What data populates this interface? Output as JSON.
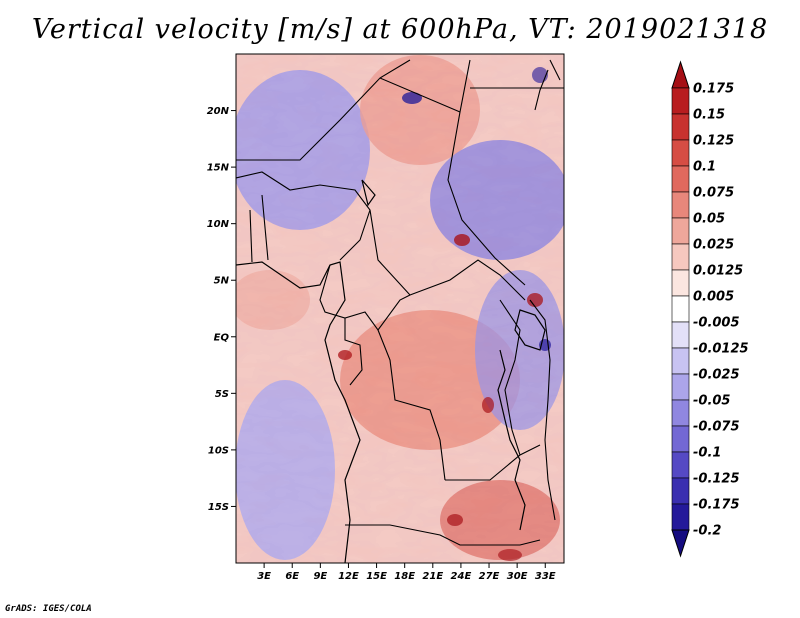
{
  "title": "Vertical velocity [m/s] at 600hPa, VT: 2019021318",
  "footer": "GrADS: IGES/COLA",
  "chart_data": {
    "type": "heatmap",
    "variable": "Vertical velocity",
    "units": "m/s",
    "level": "600hPa",
    "valid_time": "2019021318",
    "lon_range": [
      0,
      35
    ],
    "lat_range": [
      -20,
      25
    ],
    "x_ticks": [
      {
        "lon": 3,
        "label": "3E"
      },
      {
        "lon": 6,
        "label": "6E"
      },
      {
        "lon": 9,
        "label": "9E"
      },
      {
        "lon": 12,
        "label": "12E"
      },
      {
        "lon": 15,
        "label": "15E"
      },
      {
        "lon": 18,
        "label": "18E"
      },
      {
        "lon": 21,
        "label": "21E"
      },
      {
        "lon": 24,
        "label": "24E"
      },
      {
        "lon": 27,
        "label": "27E"
      },
      {
        "lon": 30,
        "label": "30E"
      },
      {
        "lon": 33,
        "label": "33E"
      }
    ],
    "y_ticks": [
      {
        "lat": 20,
        "label": "20N"
      },
      {
        "lat": 15,
        "label": "15N"
      },
      {
        "lat": 10,
        "label": "10N"
      },
      {
        "lat": 5,
        "label": "5N"
      },
      {
        "lat": 0,
        "label": "EQ"
      },
      {
        "lat": -5,
        "label": "5S"
      },
      {
        "lat": -10,
        "label": "10S"
      },
      {
        "lat": -15,
        "label": "15S"
      }
    ],
    "colorbar": {
      "levels": [
        "0.175",
        "0.15",
        "0.125",
        "0.1",
        "0.075",
        "0.05",
        "0.025",
        "0.0125",
        "0.005",
        "-0.005",
        "-0.0125",
        "-0.025",
        "-0.05",
        "-0.075",
        "-0.1",
        "-0.125",
        "-0.175",
        "-0.2"
      ],
      "colors": [
        "#a50f15",
        "#b81d1f",
        "#c8322f",
        "#d64d44",
        "#e0695e",
        "#e8877b",
        "#efa79b",
        "#f6c8bf",
        "#fbe6e0",
        "#ffffff",
        "#e3e0f8",
        "#c8c3f2",
        "#aca5ea",
        "#9087e0",
        "#7368d4",
        "#5549c4",
        "#3a2fb0",
        "#24199a",
        "#150c80"
      ]
    }
  }
}
